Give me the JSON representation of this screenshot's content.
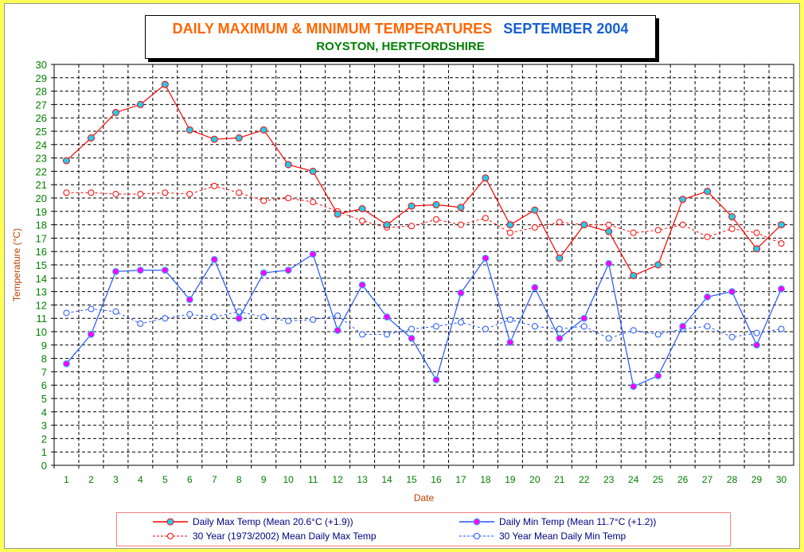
{
  "chart_data": {
    "type": "line",
    "title": "DAILY MAXIMUM &  MINIMUM  TEMPERATURES",
    "title_period": "SEPTEMBER 2004",
    "subtitle": "ROYSTON, HERTFORDSHIRE",
    "xlabel": "Date",
    "ylabel": "Temperature (°C)",
    "ylim": [
      0,
      30
    ],
    "yticks": [
      0,
      1,
      2,
      3,
      4,
      5,
      6,
      7,
      8,
      9,
      10,
      11,
      12,
      13,
      14,
      15,
      16,
      17,
      18,
      19,
      20,
      21,
      22,
      23,
      24,
      25,
      26,
      27,
      28,
      29,
      30
    ],
    "categories": [
      "1",
      "2",
      "3",
      "4",
      "5",
      "6",
      "7",
      "8",
      "9",
      "10",
      "11",
      "12",
      "13",
      "14",
      "15",
      "16",
      "17",
      "18",
      "19",
      "20",
      "21",
      "22",
      "23",
      "24",
      "25",
      "26",
      "27",
      "28",
      "29",
      "30"
    ],
    "grid": true,
    "legend_position": "bottom",
    "series": [
      {
        "name": "Daily Max Temp (Mean 20.6°C (+1.9))",
        "color": "#ff0000",
        "marker_fill": "#22ccee",
        "dashed": false,
        "values": [
          22.8,
          24.5,
          26.4,
          27.0,
          28.5,
          25.1,
          24.4,
          24.5,
          25.1,
          22.5,
          22.0,
          18.8,
          19.2,
          18.0,
          19.4,
          19.5,
          19.3,
          21.5,
          18.0,
          19.1,
          15.5,
          18.0,
          17.5,
          14.2,
          15.0,
          19.9,
          20.5,
          18.6,
          16.2,
          18.0
        ]
      },
      {
        "name": "Daily Min Temp (Mean 11.7°C (+1.2))",
        "color": "#2255ff",
        "marker_fill": "#ff00ff",
        "dashed": false,
        "values": [
          7.6,
          9.8,
          14.5,
          14.6,
          14.6,
          12.4,
          15.4,
          11.0,
          14.4,
          14.6,
          15.8,
          10.1,
          13.5,
          11.1,
          9.5,
          6.4,
          12.9,
          15.5,
          9.2,
          13.3,
          9.5,
          11.0,
          15.1,
          5.9,
          6.7,
          10.4,
          12.6,
          13.0,
          9.0,
          13.2
        ]
      },
      {
        "name": "30 Year (1973/2002) Mean Daily Max Temp",
        "color": "#ff0000",
        "marker_fill": "#ffffff",
        "dashed": true,
        "values": [
          20.4,
          20.4,
          20.3,
          20.3,
          20.4,
          20.3,
          20.9,
          20.4,
          19.8,
          20.0,
          19.7,
          19.0,
          18.3,
          17.8,
          17.9,
          18.4,
          18.0,
          18.5,
          17.4,
          17.8,
          18.2,
          18.0,
          18.0,
          17.4,
          17.6,
          18.0,
          17.1,
          17.7,
          17.4,
          16.6
        ]
      },
      {
        "name": "30 Year Mean Daily Min Temp",
        "color": "#2255ff",
        "marker_fill": "#ffffff",
        "dashed": true,
        "values": [
          11.4,
          11.7,
          11.5,
          10.6,
          11.0,
          11.3,
          11.1,
          11.5,
          11.1,
          10.8,
          10.9,
          11.2,
          9.8,
          9.8,
          10.2,
          10.4,
          10.7,
          10.2,
          10.9,
          10.4,
          10.2,
          10.4,
          9.5,
          10.1,
          9.8,
          10.2,
          10.4,
          9.6,
          9.9,
          10.2
        ]
      }
    ]
  }
}
